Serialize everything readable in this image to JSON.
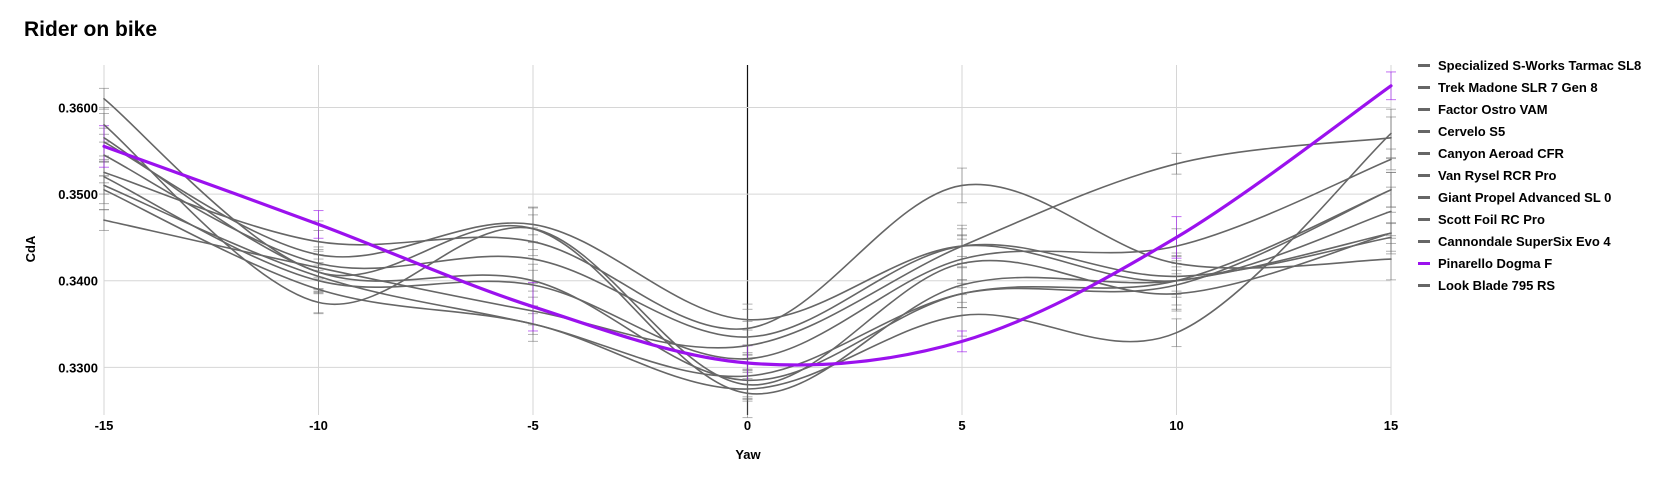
{
  "title": "Rider on bike",
  "chart_data": {
    "type": "line",
    "title": "Rider on bike",
    "xlabel": "Yaw",
    "ylabel": "CdA",
    "x": [
      -15,
      -10,
      -5,
      0,
      5,
      10,
      15
    ],
    "xticks": [
      "-15",
      "-10",
      "-5",
      "0",
      "5",
      "10",
      "15"
    ],
    "yticks": [
      "0.3300",
      "0.3400",
      "0.3500",
      "0.3600"
    ],
    "ytick_values": [
      0.33,
      0.34,
      0.35,
      0.36
    ],
    "xlim": [
      -15,
      15
    ],
    "ylim": [
      0.3245,
      0.3649
    ],
    "grid": true,
    "legend_position": "right",
    "error_bars": true,
    "base_color": "#666666",
    "highlight_color": "#9b11ee",
    "series": [
      {
        "name": "Specialized S-Works Tarmac SL8",
        "values": [
          0.361,
          0.341,
          0.346,
          0.327,
          0.3395,
          0.34,
          0.3455
        ],
        "color": "#666666"
      },
      {
        "name": "Trek Madone SLR 7 Gen 8",
        "values": [
          0.358,
          0.3375,
          0.346,
          0.328,
          0.342,
          0.3385,
          0.3455
        ],
        "color": "#666666"
      },
      {
        "name": "Factor Ostro VAM",
        "values": [
          0.3565,
          0.341,
          0.34,
          0.3285,
          0.3385,
          0.34,
          0.3505
        ],
        "color": "#666666"
      },
      {
        "name": "Cervelo S5",
        "values": [
          0.356,
          0.343,
          0.3465,
          0.3355,
          0.344,
          0.34,
          0.348
        ],
        "color": "#666666"
      },
      {
        "name": "Canyon Aeroad CFR",
        "values": [
          0.3545,
          0.342,
          0.3425,
          0.3335,
          0.344,
          0.3405,
          0.345
        ],
        "color": "#666666"
      },
      {
        "name": "Van Rysel RCR Pro",
        "values": [
          0.3525,
          0.3445,
          0.3445,
          0.3345,
          0.351,
          0.342,
          0.3425
        ],
        "color": "#666666"
      },
      {
        "name": "Giant Propel Advanced SL 0",
        "values": [
          0.352,
          0.34,
          0.3395,
          0.331,
          0.3425,
          0.344,
          0.354
        ],
        "color": "#666666"
      },
      {
        "name": "Scott Foil RC Pro",
        "values": [
          0.351,
          0.3405,
          0.335,
          0.329,
          0.3385,
          0.3395,
          0.3505
        ],
        "color": "#666666"
      },
      {
        "name": "Cannondale SuperSix Evo 4",
        "values": [
          0.3505,
          0.339,
          0.335,
          0.3275,
          0.336,
          0.334,
          0.357
        ],
        "color": "#666666"
      },
      {
        "name": "Pinarello Dogma F",
        "values": [
          0.3555,
          0.3465,
          0.337,
          0.3305,
          0.333,
          0.345,
          0.3625
        ],
        "color": "#9b11ee"
      },
      {
        "name": "Look Blade 795 RS",
        "values": [
          0.347,
          0.3415,
          0.3365,
          0.3325,
          0.344,
          0.3535,
          0.3565
        ],
        "color": "#666666"
      }
    ]
  }
}
